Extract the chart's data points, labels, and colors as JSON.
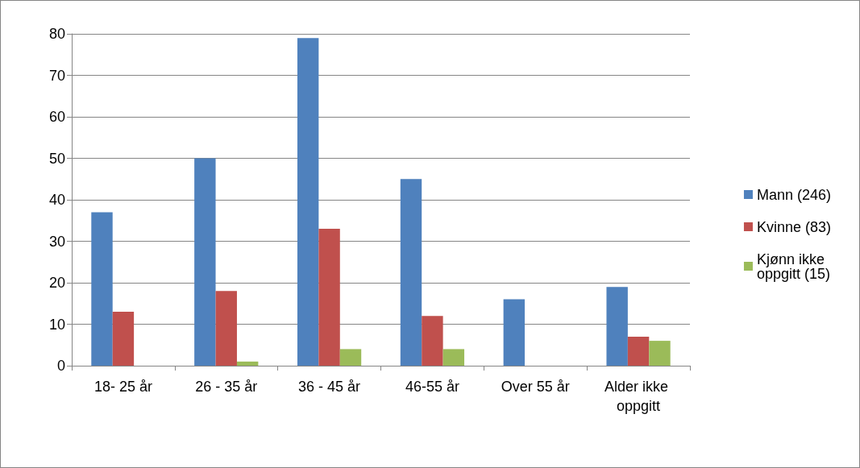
{
  "chart_data": {
    "type": "bar",
    "categories": [
      "18- 25 år",
      "26 - 35 år",
      "36 - 45 år",
      "46-55 år",
      "Over 55 år",
      "Alder ikke oppgitt"
    ],
    "series": [
      {
        "name": "Mann (246)",
        "color": "#4f81bd",
        "values": [
          37,
          50,
          79,
          45,
          16,
          19
        ]
      },
      {
        "name": "Kvinne (83)",
        "color": "#c0504d",
        "values": [
          13,
          18,
          33,
          12,
          0,
          7
        ]
      },
      {
        "name": "Kjønn ikke oppgitt (15)",
        "color": "#9bbb59",
        "values": [
          0,
          1,
          4,
          4,
          0,
          6
        ]
      }
    ],
    "ylim": [
      0,
      80
    ],
    "yticks": [
      0,
      10,
      20,
      30,
      40,
      50,
      60,
      70,
      80
    ],
    "grid": "y",
    "legend": "right"
  }
}
